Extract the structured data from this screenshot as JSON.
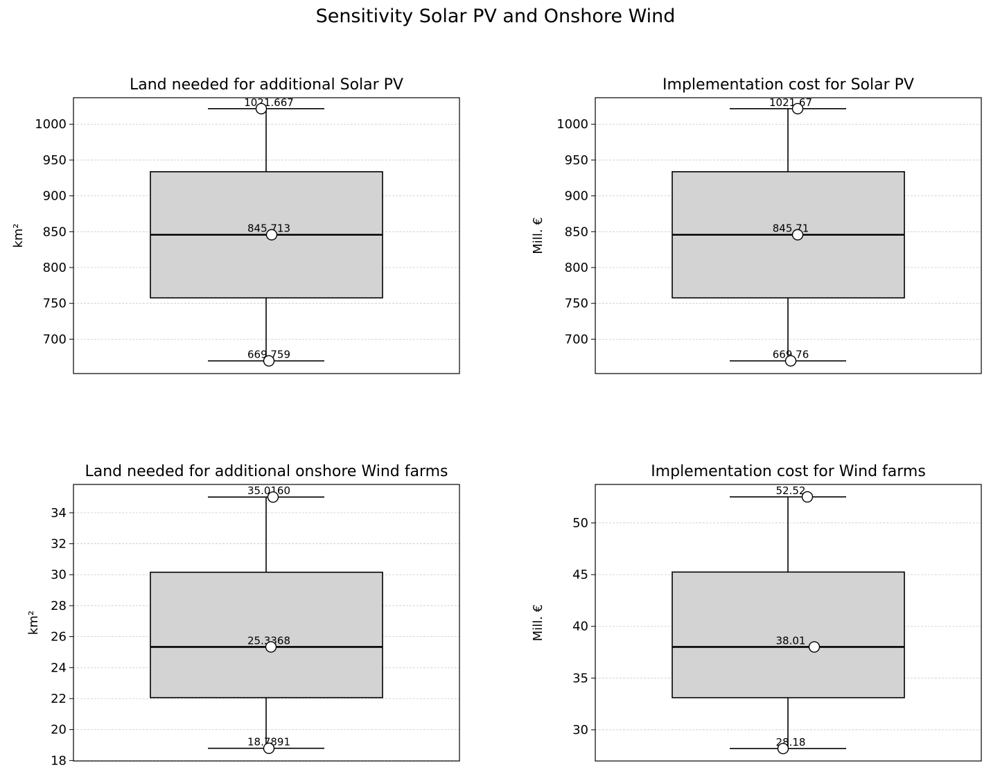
{
  "figure": {
    "title": "Sensitivity Solar PV and Onshore Wind"
  },
  "chart_data": [
    {
      "type": "box",
      "title": "Land needed for additional Solar PV",
      "ylabel": "km²",
      "ylim": [
        652,
        1037
      ],
      "yticks": [
        700,
        750,
        800,
        850,
        900,
        950,
        1000
      ],
      "grid": true,
      "stats": {
        "min": 669.759,
        "q1": 757.7,
        "median": 845.713,
        "q3": 933.7,
        "max": 1021.667
      },
      "labels": {
        "min": "669.759",
        "median": "845.713",
        "max": "1021.667"
      },
      "box_color": "#d3d3d3"
    },
    {
      "type": "box",
      "title": "Implementation cost for Solar PV",
      "ylabel": "Mill. €",
      "ylim": [
        652,
        1037
      ],
      "yticks": [
        700,
        750,
        800,
        850,
        900,
        950,
        1000
      ],
      "grid": true,
      "stats": {
        "min": 669.76,
        "q1": 757.7,
        "median": 845.71,
        "q3": 933.7,
        "max": 1021.67
      },
      "labels": {
        "min": "669.76",
        "median": "845.71",
        "max": "1021.67"
      },
      "box_color": "#d3d3d3"
    },
    {
      "type": "box",
      "title": "Land needed for additional onshore Wind farms",
      "ylabel": "km²",
      "ylim": [
        17.97,
        35.83
      ],
      "yticks": [
        18,
        20,
        22,
        24,
        26,
        28,
        30,
        32,
        34
      ],
      "grid": true,
      "stats": {
        "min": 18.7891,
        "q1": 22.06,
        "median": 25.3368,
        "q3": 30.16,
        "max": 35.016
      },
      "labels": {
        "min": "18.7891",
        "median": "25.3368",
        "max": "35.0160"
      },
      "box_color": "#d3d3d3"
    },
    {
      "type": "box",
      "title": "Implementation cost for Wind farms",
      "ylabel": "Mill. €",
      "ylim": [
        26.98,
        53.72
      ],
      "yticks": [
        30,
        35,
        40,
        45,
        50
      ],
      "grid": true,
      "stats": {
        "min": 28.18,
        "q1": 33.1,
        "median": 38.01,
        "q3": 45.25,
        "max": 52.52
      },
      "labels": {
        "min": "28.18",
        "median": "38.01",
        "max": "52.52"
      },
      "box_color": "#d3d3d3"
    }
  ]
}
